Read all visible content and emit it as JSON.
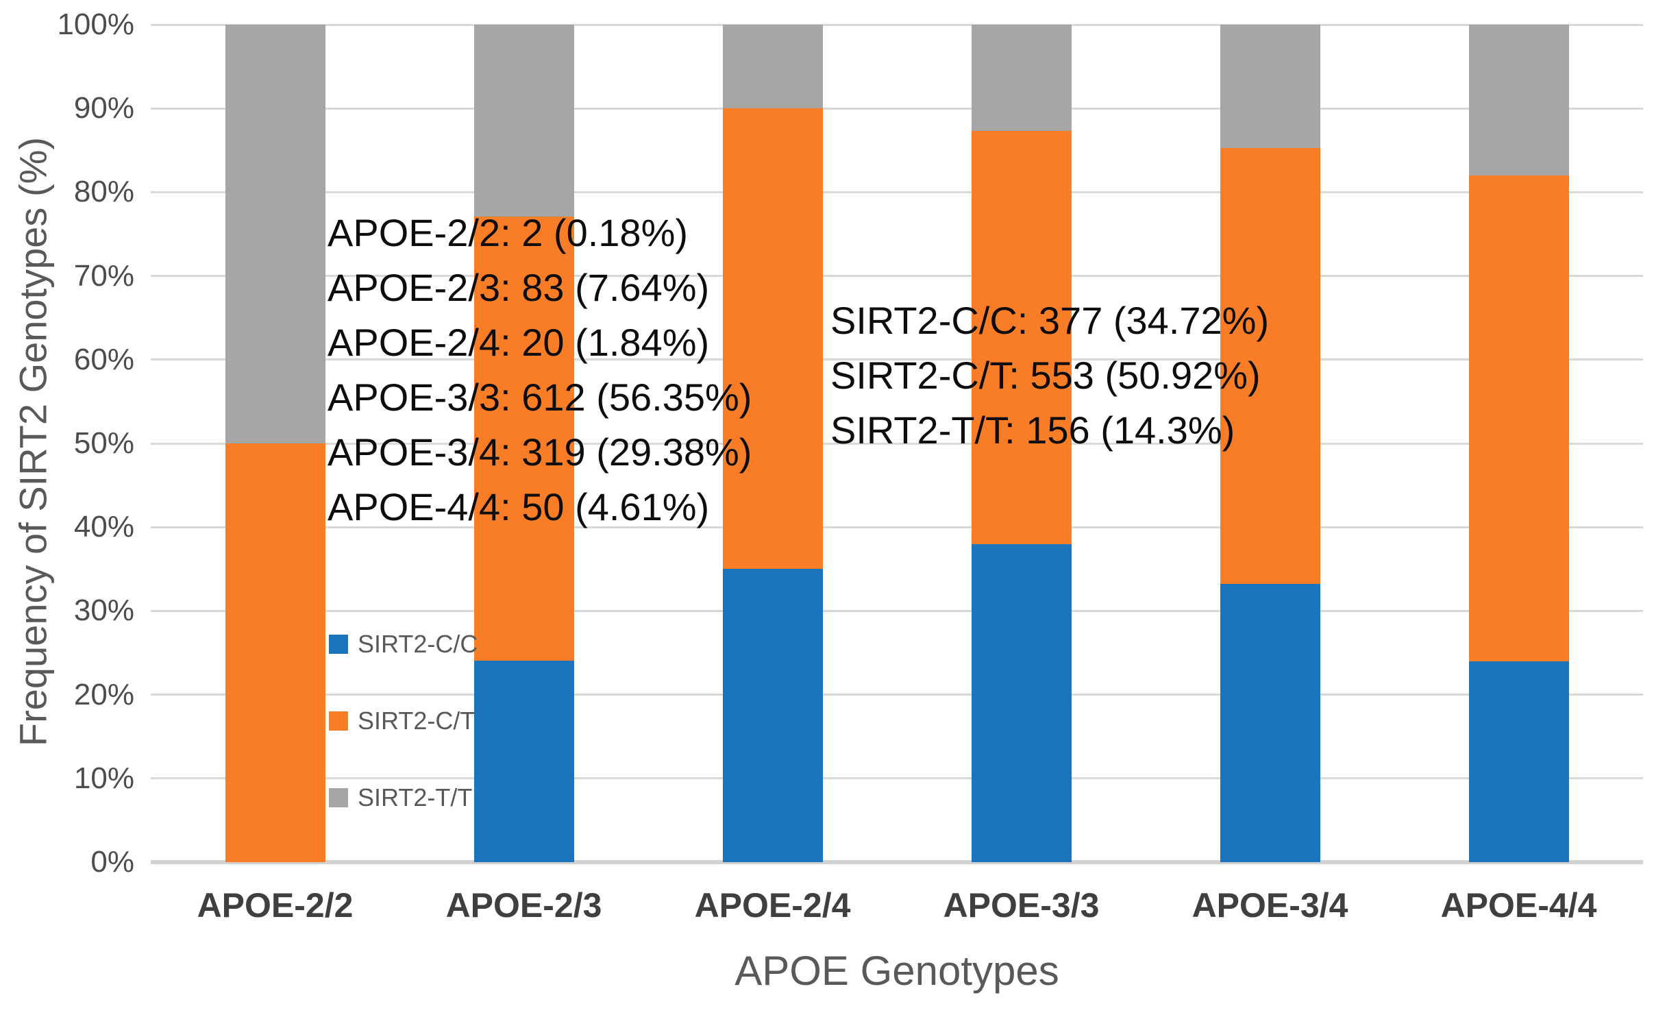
{
  "chart_data": {
    "type": "bar",
    "stacked": true,
    "units": "percent",
    "title": "",
    "xlabel": "APOE Genotypes",
    "ylabel": "Frequency of SIRT2 Genotypes (%)",
    "categories": [
      "APOE-2/2",
      "APOE-2/3",
      "APOE-2/4",
      "APOE-3/3",
      "APOE-3/4",
      "APOE-4/4"
    ],
    "series": [
      {
        "name": "SIRT2-C/C",
        "color": "#1C74BD",
        "values": [
          0,
          24.1,
          35,
          38,
          33.2,
          24
        ]
      },
      {
        "name": "SIRT2-C/T",
        "color": "#F97D26",
        "values": [
          50,
          53,
          55,
          49.3,
          52.1,
          58
        ]
      },
      {
        "name": "SIRT2-T/T",
        "color": "#A6A6A6",
        "values": [
          50,
          22.9,
          10,
          12.7,
          14.7,
          18
        ]
      }
    ],
    "ylim": [
      0,
      100
    ],
    "yticks": [
      "0%",
      "10%",
      "20%",
      "30%",
      "40%",
      "50%",
      "60%",
      "70%",
      "80%",
      "90%",
      "100%"
    ],
    "grid": true,
    "legend_position": "inside-left",
    "annotations": [
      {
        "id": "apoe_counts",
        "lines": [
          "APOE-2/2: 2 (0.18%)",
          "APOE-2/3: 83 (7.64%)",
          "APOE-2/4: 20 (1.84%)",
          "APOE-3/3: 612 (56.35%)",
          "APOE-3/4: 319 (29.38%)",
          "APOE-4/4: 50 (4.61%)"
        ]
      },
      {
        "id": "sirt2_counts",
        "lines": [
          "SIRT2-C/C: 377 (34.72%)",
          "SIRT2-C/T: 553 (50.92%)",
          "SIRT2-T/T: 156 (14.3%)"
        ]
      }
    ]
  },
  "legend": {
    "items": [
      {
        "label": "SIRT2-C/C",
        "color": "#1C74BD"
      },
      {
        "label": "SIRT2-C/T",
        "color": "#F97D26"
      },
      {
        "label": "SIRT2-T/T",
        "color": "#A6A6A6"
      }
    ]
  },
  "colors": {
    "gridline": "#D9D9D9",
    "axis_line": "#D2D2D2",
    "tick_text": "#4D4D4D",
    "category_text": "#3F3F3F",
    "axis_title_text": "#595959",
    "annotation_text": "#0D0D0D",
    "background": "#FFFFFF"
  }
}
